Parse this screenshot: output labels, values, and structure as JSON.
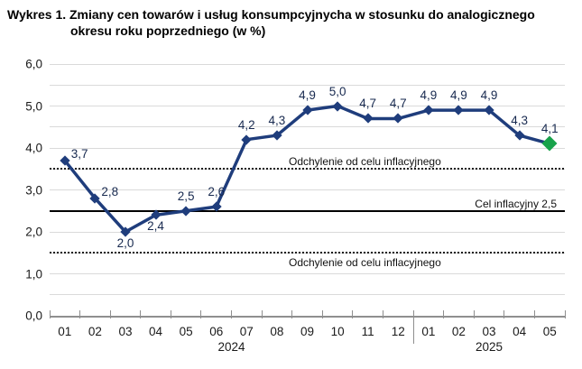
{
  "title": {
    "line1": "Wykres 1. Zmiany cen towarów i usług konsumpcyjnycha w stosunku do analogicznego",
    "line2": "okresu roku poprzedniego (w %)"
  },
  "colors": {
    "line": "#1f3d7c",
    "marker": "#1f3d7c",
    "last_marker_green": "#18a24b",
    "grid": "#dadada",
    "axis": "#8f8f8f",
    "data_label": "#17294f",
    "ref_line": "#000000"
  },
  "chart_data": {
    "type": "line",
    "x": [
      "01",
      "02",
      "03",
      "04",
      "05",
      "06",
      "07",
      "08",
      "09",
      "10",
      "11",
      "12",
      "01",
      "02",
      "03",
      "04",
      "05"
    ],
    "x_groups": [
      {
        "label": "2024",
        "span": 12
      },
      {
        "label": "2025",
        "span": 5
      }
    ],
    "values": [
      3.7,
      2.8,
      2.0,
      2.4,
      2.5,
      2.6,
      4.2,
      4.3,
      4.9,
      5.0,
      4.7,
      4.7,
      4.9,
      4.9,
      4.9,
      4.3,
      4.1
    ],
    "point_labels": [
      "3,7",
      "2,8",
      "2,0",
      "2,4",
      "2,5",
      "2,6",
      "4,2",
      "4,3",
      "4,9",
      "5,0",
      "4,7",
      "4,7",
      "4,9",
      "4,9",
      "4,9",
      "4,3",
      "4,1"
    ],
    "label_pos": [
      "right",
      "right",
      "below",
      "below",
      "above",
      "above",
      "above",
      "above",
      "above",
      "above",
      "above",
      "above",
      "above",
      "above",
      "above",
      "above",
      "above"
    ],
    "ylim": [
      0,
      6
    ],
    "grid_step": 0.5,
    "y_tick_labels": [
      "6,0",
      "5,0",
      "4,0",
      "3,0",
      "2,0",
      "1,0",
      "0,0"
    ],
    "y_tick_values": [
      6,
      5,
      4,
      3,
      2,
      1,
      0
    ],
    "legend_position": "none",
    "grid": "horizontal",
    "ref_lines": [
      {
        "value": 3.5,
        "style": "dotted",
        "label": "Odchylenie od celu inflacyjnego",
        "side": "above",
        "x": 265
      },
      {
        "value": 2.5,
        "style": "solid",
        "label": "Cel inflacyjny 2,5",
        "side": "above-right",
        "x": 9
      },
      {
        "value": 1.5,
        "style": "dotted",
        "label": "Odchylenie od celu inflacyjnego",
        "side": "below",
        "x": 265
      }
    ]
  }
}
